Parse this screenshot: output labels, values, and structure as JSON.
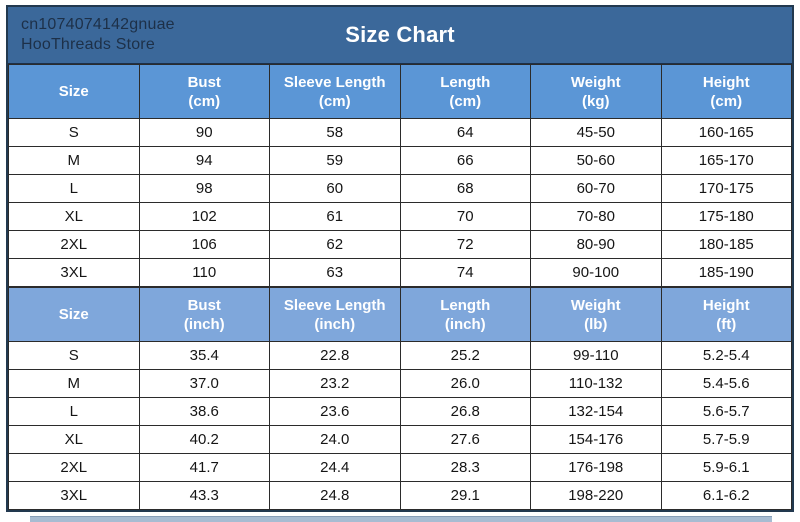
{
  "page": {
    "store_id": "cn1074074142gnuae",
    "store_name": "HooThreads Store",
    "title": "Size Chart"
  },
  "colors": {
    "top_band_bg": "#3b689a",
    "header_cm_bg": "#5b96d6",
    "header_inch_bg": "#7fa7db",
    "border": "#2b2b2b",
    "title_text": "#ffffff",
    "store_text": "#1d3048",
    "cell_text": "#151515"
  },
  "cm_table": {
    "headers": [
      {
        "label": "Size",
        "unit": ""
      },
      {
        "label": "Bust",
        "unit": "(cm)"
      },
      {
        "label": "Sleeve Length",
        "unit": "(cm)"
      },
      {
        "label": "Length",
        "unit": "(cm)"
      },
      {
        "label": "Weight",
        "unit": "(kg)"
      },
      {
        "label": "Height",
        "unit": "(cm)"
      }
    ],
    "rows": [
      [
        "S",
        "90",
        "58",
        "64",
        "45-50",
        "160-165"
      ],
      [
        "M",
        "94",
        "59",
        "66",
        "50-60",
        "165-170"
      ],
      [
        "L",
        "98",
        "60",
        "68",
        "60-70",
        "170-175"
      ],
      [
        "XL",
        "102",
        "61",
        "70",
        "70-80",
        "175-180"
      ],
      [
        "2XL",
        "106",
        "62",
        "72",
        "80-90",
        "180-185"
      ],
      [
        "3XL",
        "110",
        "63",
        "74",
        "90-100",
        "185-190"
      ]
    ]
  },
  "inch_table": {
    "headers": [
      {
        "label": "Size",
        "unit": ""
      },
      {
        "label": "Bust",
        "unit": "(inch)"
      },
      {
        "label": "Sleeve Length",
        "unit": "(inch)"
      },
      {
        "label": "Length",
        "unit": "(inch)"
      },
      {
        "label": "Weight",
        "unit": "(lb)"
      },
      {
        "label": "Height",
        "unit": "(ft)"
      }
    ],
    "rows": [
      [
        "S",
        "35.4",
        "22.8",
        "25.2",
        "99-110",
        "5.2-5.4"
      ],
      [
        "M",
        "37.0",
        "23.2",
        "26.0",
        "110-132",
        "5.4-5.6"
      ],
      [
        "L",
        "38.6",
        "23.6",
        "26.8",
        "132-154",
        "5.6-5.7"
      ],
      [
        "XL",
        "40.2",
        "24.0",
        "27.6",
        "154-176",
        "5.7-5.9"
      ],
      [
        "2XL",
        "41.7",
        "24.4",
        "28.3",
        "176-198",
        "5.9-6.1"
      ],
      [
        "3XL",
        "43.3",
        "24.8",
        "29.1",
        "198-220",
        "6.1-6.2"
      ]
    ]
  }
}
